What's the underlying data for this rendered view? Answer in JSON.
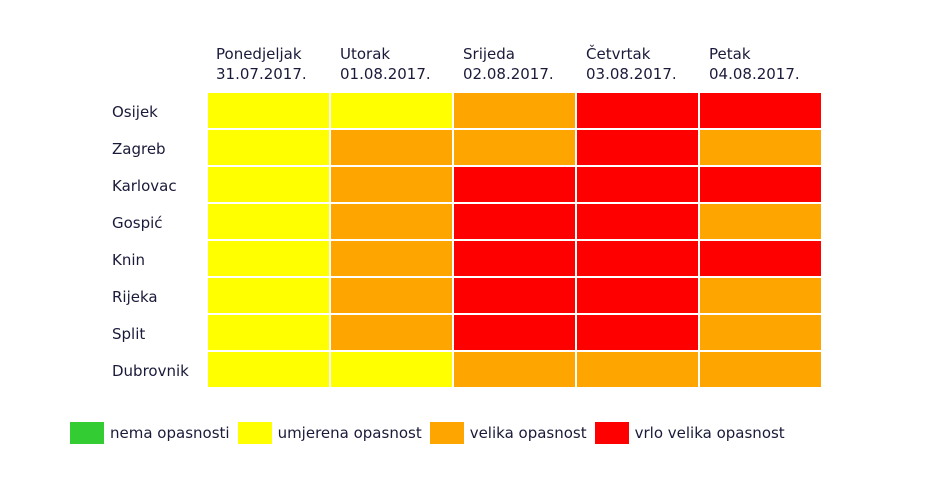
{
  "chart_data": {
    "type": "heatmap",
    "columns": [
      {
        "day": "Ponedjeljak",
        "date": "31.07.2017."
      },
      {
        "day": "Utorak",
        "date": "01.08.2017."
      },
      {
        "day": "Srijeda",
        "date": "02.08.2017."
      },
      {
        "day": "Četvrtak",
        "date": "03.08.2017."
      },
      {
        "day": "Petak",
        "date": "04.08.2017."
      }
    ],
    "rows": [
      "Osijek",
      "Zagreb",
      "Karlovac",
      "Gospić",
      "Knin",
      "Rijeka",
      "Split",
      "Dubrovnik"
    ],
    "levels": [
      {
        "label": "nema opasnosti",
        "color": "#33cc33"
      },
      {
        "label": "umjerena opasnost",
        "color": "#ffff00"
      },
      {
        "label": "velika opasnost",
        "color": "#ffa500"
      },
      {
        "label": "vrlo velika opasnost",
        "color": "#ff0000"
      }
    ],
    "values": [
      [
        1,
        1,
        2,
        3,
        3
      ],
      [
        1,
        2,
        2,
        3,
        2
      ],
      [
        1,
        2,
        3,
        3,
        3
      ],
      [
        1,
        2,
        3,
        3,
        2
      ],
      [
        1,
        2,
        3,
        3,
        3
      ],
      [
        1,
        2,
        3,
        3,
        2
      ],
      [
        1,
        2,
        3,
        3,
        2
      ],
      [
        1,
        1,
        2,
        2,
        2
      ]
    ]
  }
}
